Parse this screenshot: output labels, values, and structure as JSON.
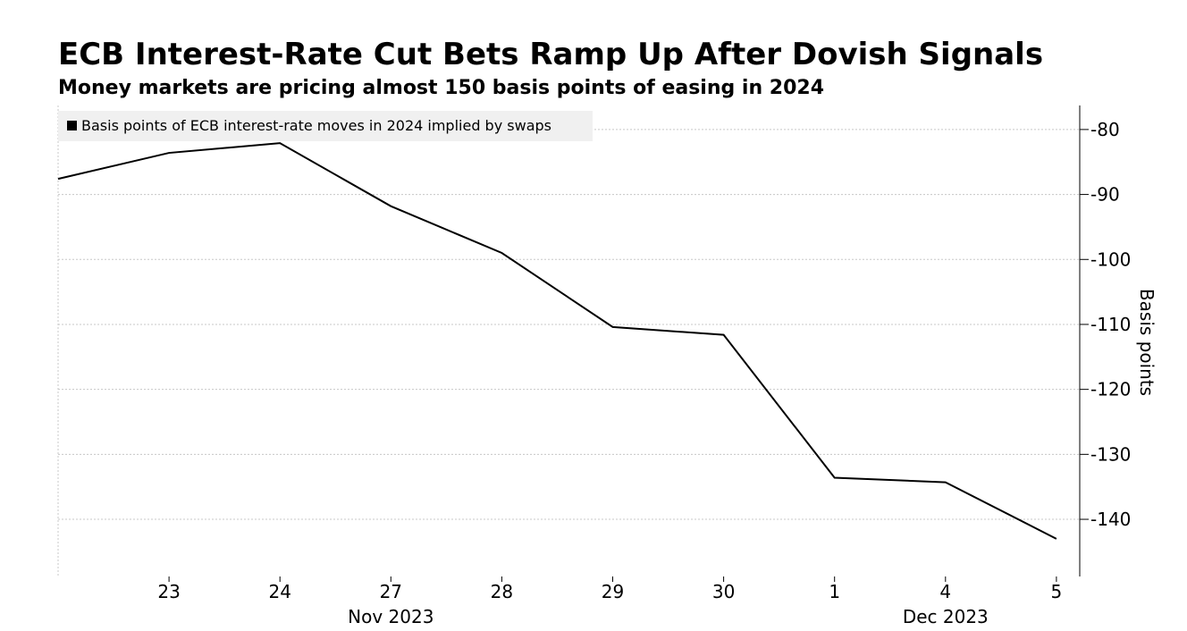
{
  "chart_data": {
    "type": "line",
    "title": "ECB Interest-Rate Cut Bets Ramp Up After Dovish Signals",
    "subtitle": "Money markets are pricing almost 150 basis points of easing in 2024",
    "y_axis_label": "Basis points",
    "categories": [
      null,
      "23",
      "24",
      "27",
      "28",
      "29",
      "30",
      "1",
      "4",
      "5"
    ],
    "x_groups": [
      {
        "label": "Nov 2023",
        "first": 0,
        "last": 6
      },
      {
        "label": "Dec 2023",
        "first": 7,
        "last": 9
      }
    ],
    "series": [
      {
        "name": "Basis points of ECB interest-rate moves in 2024 implied by swaps",
        "color": "#000000",
        "values": [
          -87.6,
          -83.6,
          -82.1,
          -91.8,
          -99.0,
          -110.4,
          -111.6,
          -133.6,
          -134.3,
          -143.0
        ]
      }
    ],
    "ylim": [
      -148.8,
      -76.3
    ],
    "yticks": [
      -140,
      -130,
      -120,
      -110,
      -100,
      -90,
      -80
    ],
    "grid": true,
    "legend": "top-left"
  }
}
